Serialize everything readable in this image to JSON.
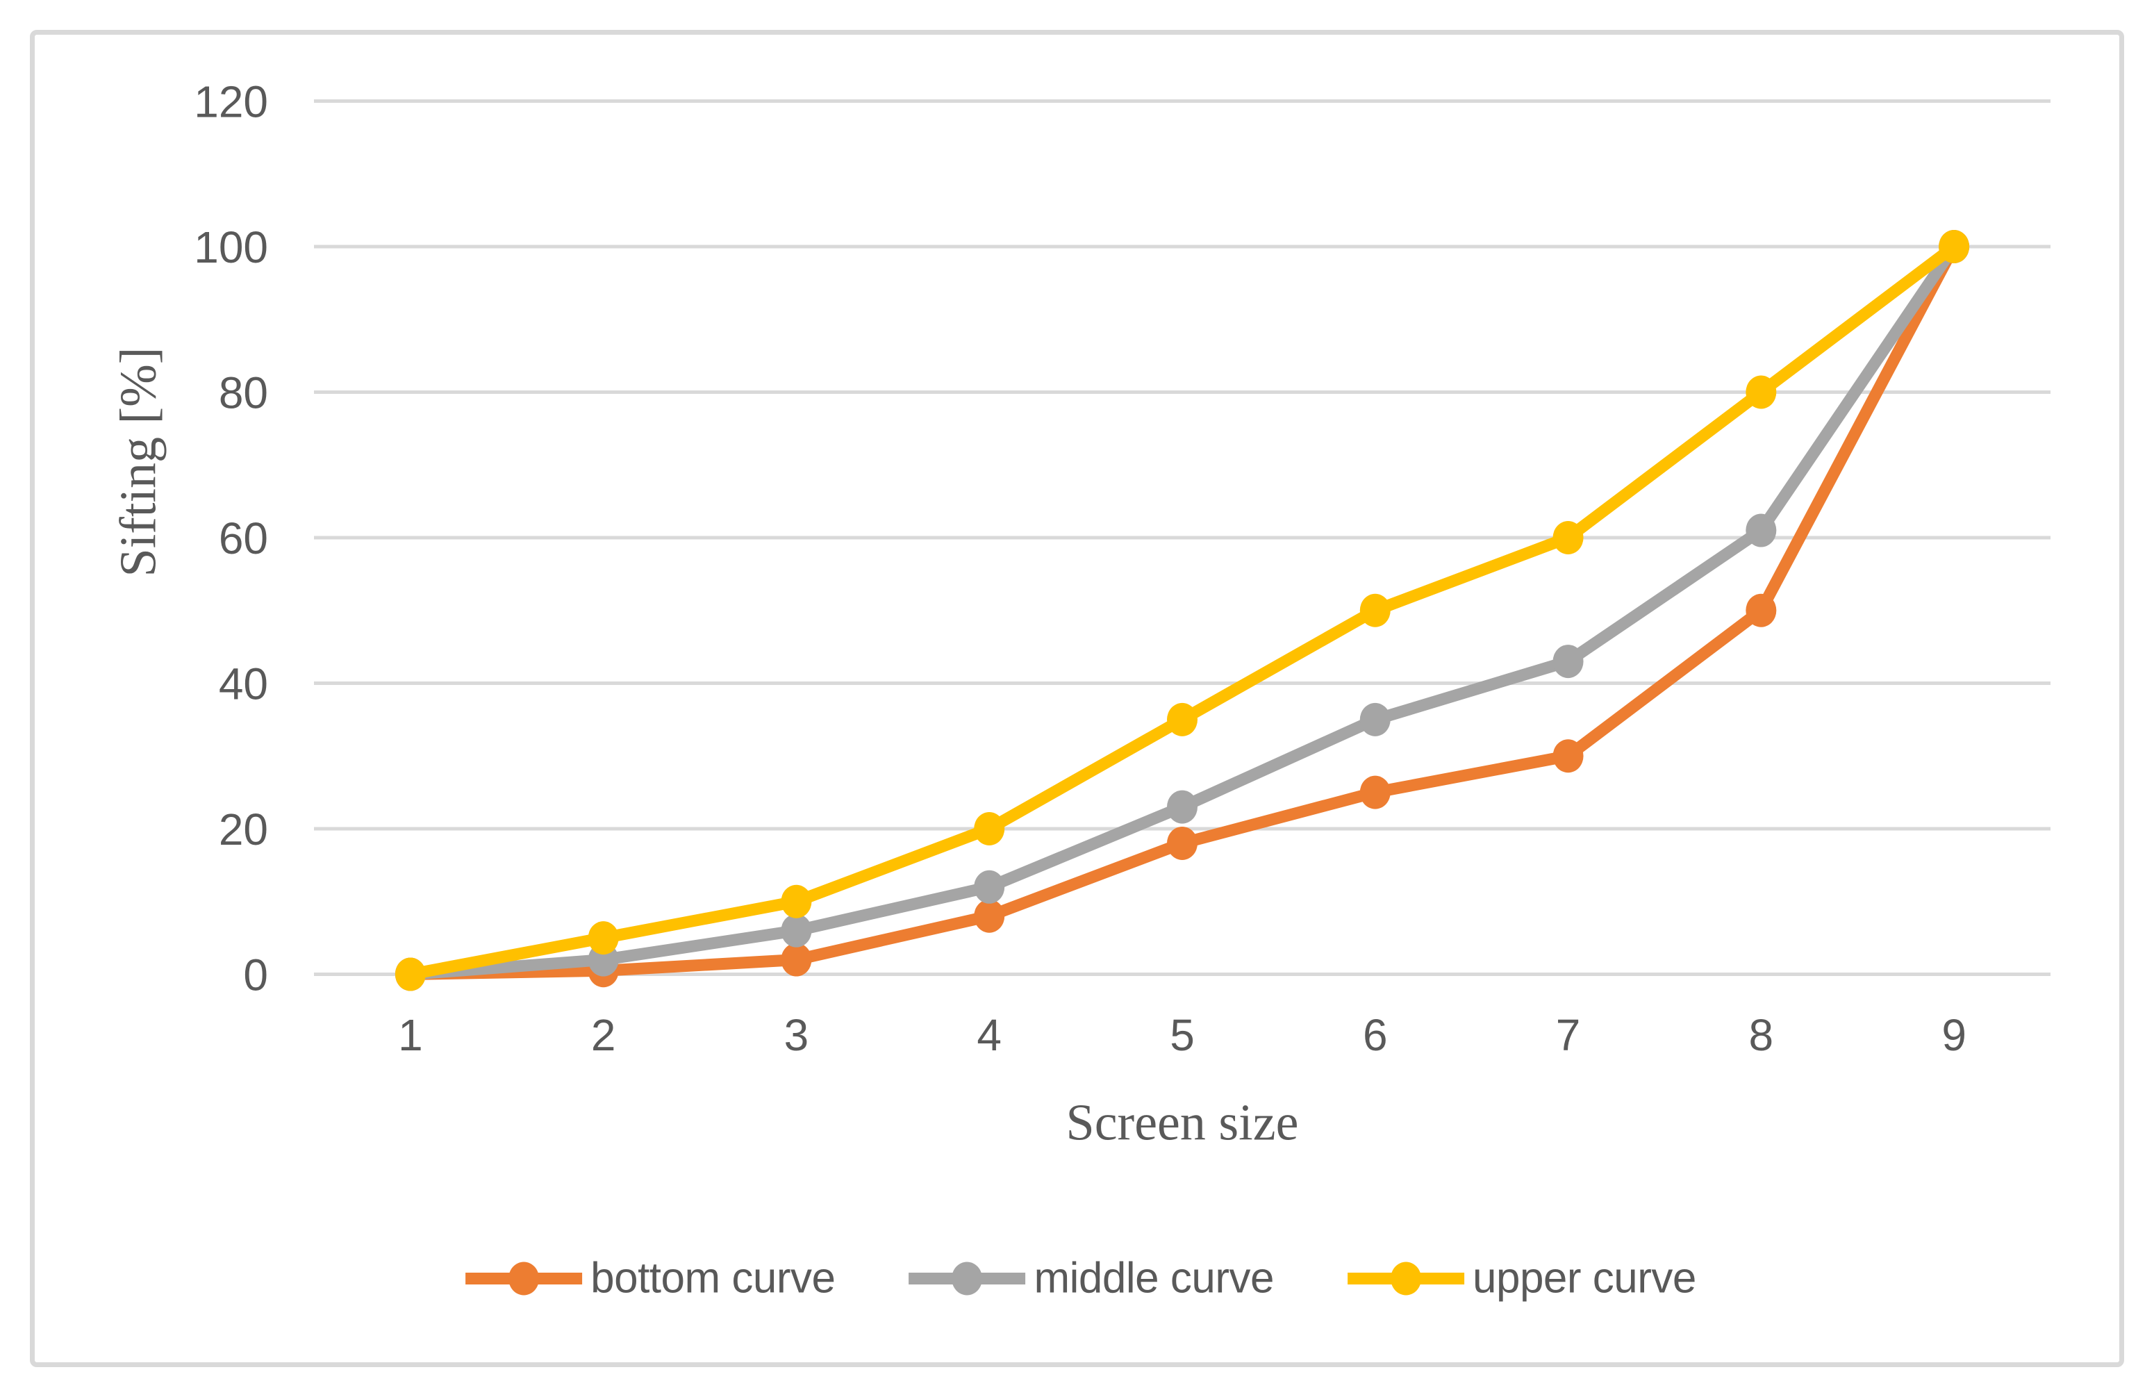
{
  "chart_data": {
    "type": "line",
    "title": "",
    "xlabel": "Screen size",
    "ylabel": "Sifting [%]",
    "categories": [
      "1",
      "2",
      "3",
      "4",
      "5",
      "6",
      "7",
      "8",
      "9"
    ],
    "series": [
      {
        "name": "bottom curve",
        "color": "#ED7D31",
        "values": [
          0,
          0.5,
          2,
          8,
          18,
          25,
          30,
          50,
          100
        ]
      },
      {
        "name": "middle curve",
        "color": "#A5A5A5",
        "values": [
          0,
          2,
          6,
          12,
          23,
          35,
          43,
          61,
          100
        ]
      },
      {
        "name": "upper curve",
        "color": "#FFC000",
        "values": [
          0,
          5,
          10,
          20,
          35,
          50,
          60,
          80,
          100
        ]
      }
    ],
    "ylim": [
      0,
      120
    ],
    "ytick_step": 20,
    "yticks": [
      "0",
      "20",
      "40",
      "60",
      "80",
      "100",
      "120"
    ],
    "grid": "horizontal",
    "legend_position": "bottom",
    "gridline_color": "#D9D9D9",
    "text_color": "#595959",
    "frame_color": "#D9D9D9"
  }
}
